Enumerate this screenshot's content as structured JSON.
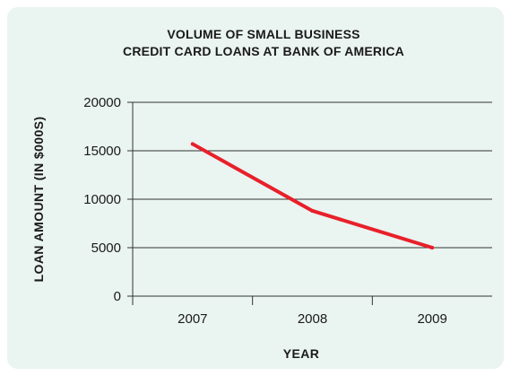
{
  "chart_data": {
    "type": "line",
    "title_lines": [
      "VOLUME OF SMALL BUSINESS",
      "CREDIT CARD LOANS AT BANK OF AMERICA"
    ],
    "xlabel": "YEAR",
    "ylabel": "LOAN AMOUNT (IN $000S)",
    "categories": [
      "2007",
      "2008",
      "2009"
    ],
    "yticks": [
      "0",
      "5000",
      "10000",
      "15000",
      "20000"
    ],
    "ylim": [
      0,
      20000
    ],
    "series": [
      {
        "values": [
          15700,
          8800,
          5000
        ],
        "color": "#e8202a"
      }
    ],
    "grid": true
  }
}
